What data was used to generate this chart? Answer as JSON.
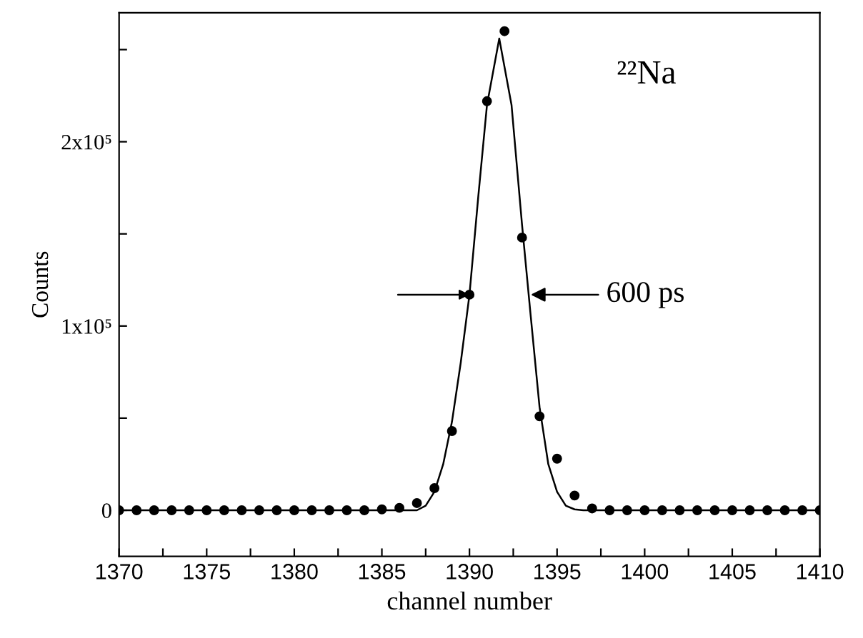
{
  "chart_data": {
    "type": "scatter",
    "xlabel": "channel number",
    "ylabel": "Counts",
    "series": [
      {
        "color": "#000000",
        "marker": "circle",
        "x": [
          1370,
          1371,
          1372,
          1373,
          1374,
          1375,
          1376,
          1377,
          1378,
          1379,
          1380,
          1381,
          1382,
          1383,
          1384,
          1385,
          1386,
          1387,
          1388,
          1389,
          1390,
          1391,
          1392,
          1393,
          1394,
          1395,
          1396,
          1397,
          1398,
          1399,
          1400,
          1401,
          1402,
          1403,
          1404,
          1405,
          1406,
          1407,
          1408,
          1409,
          1410
        ],
        "values": [
          0,
          0,
          0,
          0,
          0,
          0,
          0,
          0,
          0,
          0,
          0,
          0,
          0,
          0,
          0,
          500,
          1300,
          3900,
          12000,
          43000,
          117000,
          222000,
          260000,
          148000,
          51000,
          28000,
          8000,
          1000,
          0,
          0,
          0,
          0,
          0,
          0,
          0,
          0,
          0,
          0,
          0,
          0,
          0
        ]
      },
      {
        "type": "line",
        "color": "#000000",
        "marker": "none",
        "line_style": "solid",
        "x": [
          1370,
          1387,
          1387.5,
          1388,
          1388.5,
          1389,
          1389.5,
          1390,
          1390.5,
          1391,
          1391.7,
          1392.4,
          1393,
          1393.5,
          1394,
          1394.5,
          1395,
          1395.5,
          1396,
          1396.5,
          1410
        ],
        "values": [
          0,
          0,
          2500,
          10000,
          25000,
          48000,
          80000,
          117000,
          170000,
          220000,
          256000,
          220000,
          155000,
          105000,
          56000,
          25000,
          10000,
          2500,
          500,
          0,
          0
        ]
      }
    ],
    "xlim": [
      1370,
      1410
    ],
    "xticks": [
      1370,
      {
        "value": 1372.5,
        "label": null
      },
      1375,
      {
        "value": 1377.5,
        "label": null
      },
      1380,
      {
        "value": 1382.5,
        "label": null
      },
      1385,
      {
        "value": 1387.5,
        "label": null
      },
      1390,
      {
        "value": 1392.5,
        "label": null
      },
      1395,
      {
        "value": 1397.5,
        "label": null
      },
      1400,
      {
        "value": 1402.5,
        "label": null
      },
      1405,
      {
        "value": 1407.5,
        "label": null
      },
      1410
    ],
    "ylim": [
      -25000,
      270000
    ],
    "yticks": [
      {
        "value": 0,
        "label": "0"
      },
      {
        "value": 50000,
        "label": null
      },
      {
        "value": 100000,
        "label": "1x10⁵"
      },
      {
        "value": 150000,
        "label": null
      },
      {
        "value": 200000,
        "label": "2x10⁵"
      },
      {
        "value": 250000,
        "label": null
      }
    ],
    "grid": false,
    "legend": false,
    "annotations": [
      "²²Na",
      {
        "text": "600 ps",
        "x": 1393.5,
        "y": 117000
      }
    ]
  }
}
